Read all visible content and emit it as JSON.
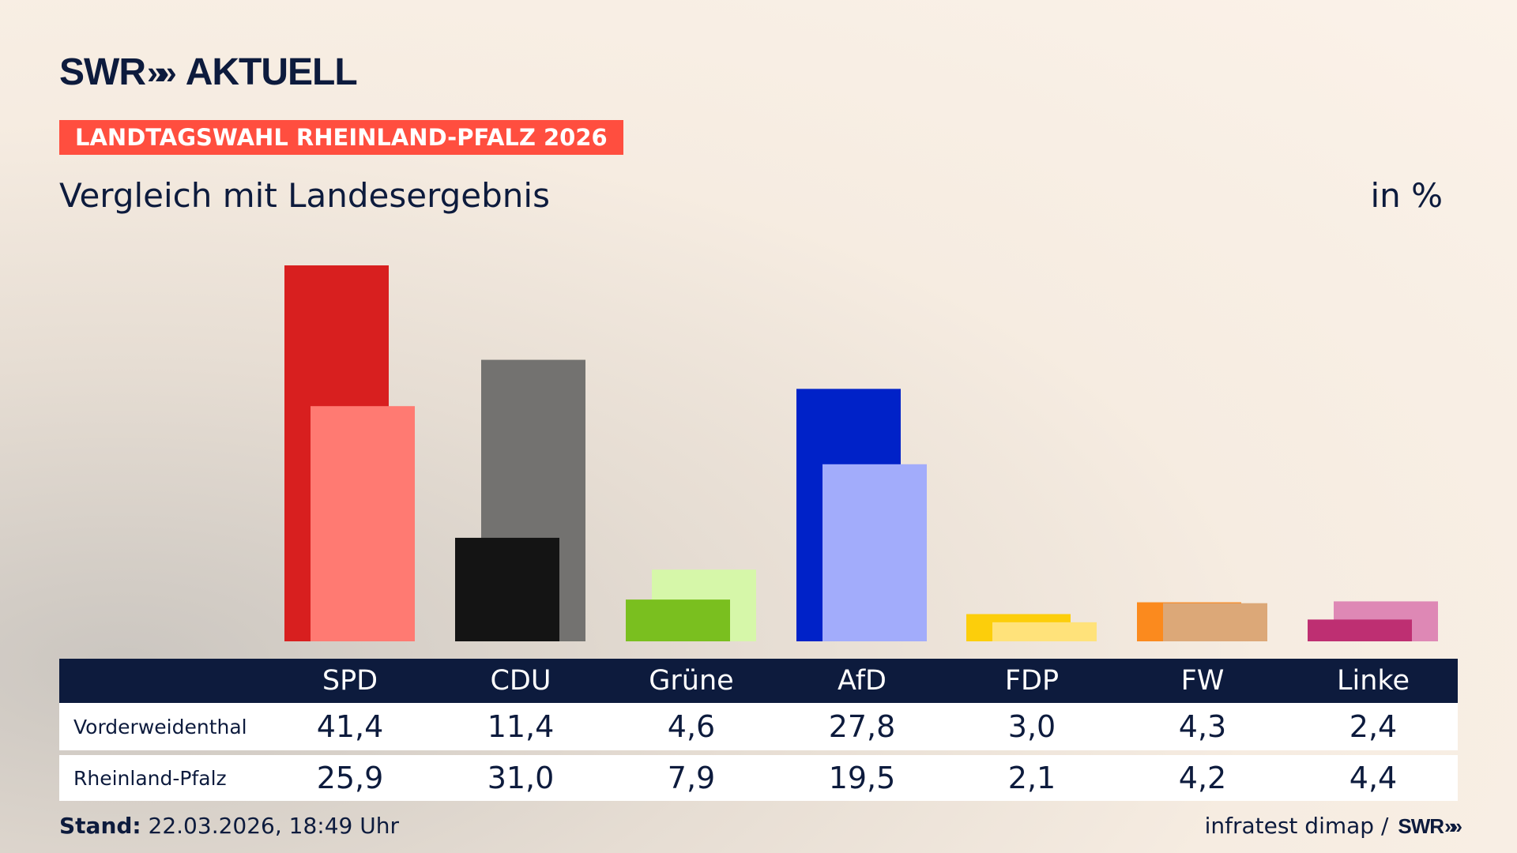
{
  "brand": {
    "logo_main": "SWR",
    "logo_chevrons": "»»",
    "logo_suffix": "AKTUELL"
  },
  "tag_label": "LANDTAGSWAHL RHEINLAND-PFALZ 2026",
  "subtitle": "Vergleich mit Landesergebnis",
  "unit_label": "in %",
  "chart_data": {
    "type": "bar",
    "title": "Vergleich mit Landesergebnis",
    "unit": "in %",
    "categories": [
      "SPD",
      "CDU",
      "Grüne",
      "AfD",
      "FDP",
      "FW",
      "Linke"
    ],
    "series": [
      {
        "name": "Vorderweidenthal",
        "values": [
          41.4,
          11.4,
          4.6,
          27.8,
          3.0,
          4.3,
          2.4
        ],
        "display": [
          "41,4",
          "11,4",
          "4,6",
          "27,8",
          "3,0",
          "4,3",
          "2,4"
        ]
      },
      {
        "name": "Rheinland-Pfalz",
        "values": [
          25.9,
          31.0,
          7.9,
          19.5,
          2.1,
          4.2,
          4.4
        ],
        "display": [
          "25,9",
          "31,0",
          "7,9",
          "19,5",
          "2,1",
          "4,2",
          "4,4"
        ]
      }
    ],
    "colors_local": [
      "#d81f1f",
      "#141414",
      "#7abf1f",
      "#0022c8",
      "#fcce0b",
      "#fb8a1e",
      "#be2f72"
    ],
    "colors_state": [
      "#ff7a72",
      "#737270",
      "#d6f7a9",
      "#a2acfb",
      "#ffe27a",
      "#dca878",
      "#de88b5"
    ],
    "ylim": [
      0,
      41.4
    ],
    "grid": false,
    "legend": "table-below"
  },
  "footer": {
    "stand_label": "Stand:",
    "stand_value": "22.03.2026, 18:49 Uhr",
    "source": "infratest dimap /",
    "source_brand": "SWR",
    "source_chevrons": "»»"
  }
}
